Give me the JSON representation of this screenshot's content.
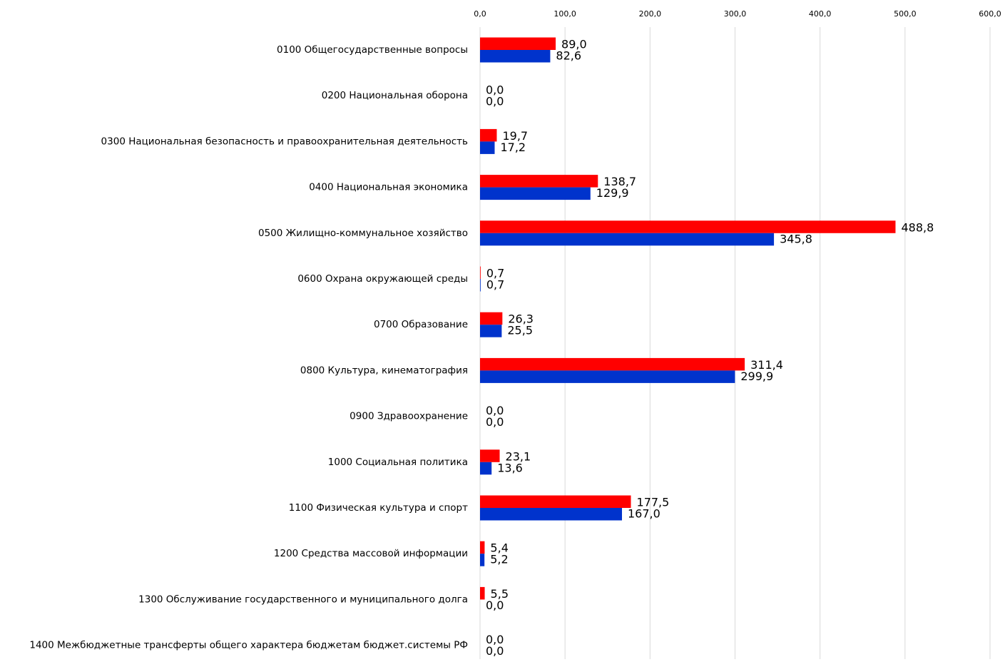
{
  "chart_data": {
    "type": "barh",
    "categories": [
      "0100 Общегосударственные вопросы",
      "0200 Национальная оборона",
      "0300 Национальная безопасность и правоохранительная деятельность",
      "0400 Национальная экономика",
      "0500 Жилищно-коммунальное хозяйство",
      "0600 Охрана окружающей среды",
      "0700 Образование",
      "0800 Культура, кинематография",
      "0900 Здравоохранение",
      "1000 Социальная политика",
      "1100 Физическая культура и спорт",
      "1200 Средства массовой информации",
      "1300 Обслуживание государственного и муниципального долга",
      "1400 Межбюджетные трансферты общего характера бюджетам бюджет.системы РФ"
    ],
    "series": [
      {
        "color": "#ff0000",
        "values": [
          89.0,
          0,
          19.7,
          138.7,
          488.8,
          0.7,
          26.3,
          311.4,
          0,
          23.1,
          177.5,
          5.4,
          5.5,
          0
        ],
        "value_labels": [
          "89,0",
          "0,0",
          "19,7",
          "138,7",
          "488,8",
          "0,7",
          "26,3",
          "311,4",
          "0,0",
          "23,1",
          "177,5",
          "5,4",
          "5,5",
          "0,0"
        ]
      },
      {
        "color": "#0033cc",
        "values": [
          82.6,
          0,
          17.2,
          129.9,
          345.8,
          0.7,
          25.5,
          299.9,
          0,
          13.6,
          167.0,
          5.2,
          0,
          0
        ],
        "value_labels": [
          "82,6",
          "0,0",
          "17,2",
          "129,9",
          "345,8",
          "0,7",
          "25,5",
          "299,9",
          "0,0",
          "13,6",
          "167,0",
          "5,2",
          "0,0",
          "0,0"
        ]
      }
    ],
    "xlim": [
      0,
      600
    ],
    "xticks": [
      {
        "value": 0,
        "label": "0,0"
      },
      {
        "value": 100,
        "label": "100,0"
      },
      {
        "value": 200,
        "label": "200,0"
      },
      {
        "value": 300,
        "label": "300,0"
      },
      {
        "value": 400,
        "label": "400,0"
      },
      {
        "value": 500,
        "label": "500,0"
      },
      {
        "value": 600,
        "label": "600,0"
      }
    ],
    "grid": true
  }
}
